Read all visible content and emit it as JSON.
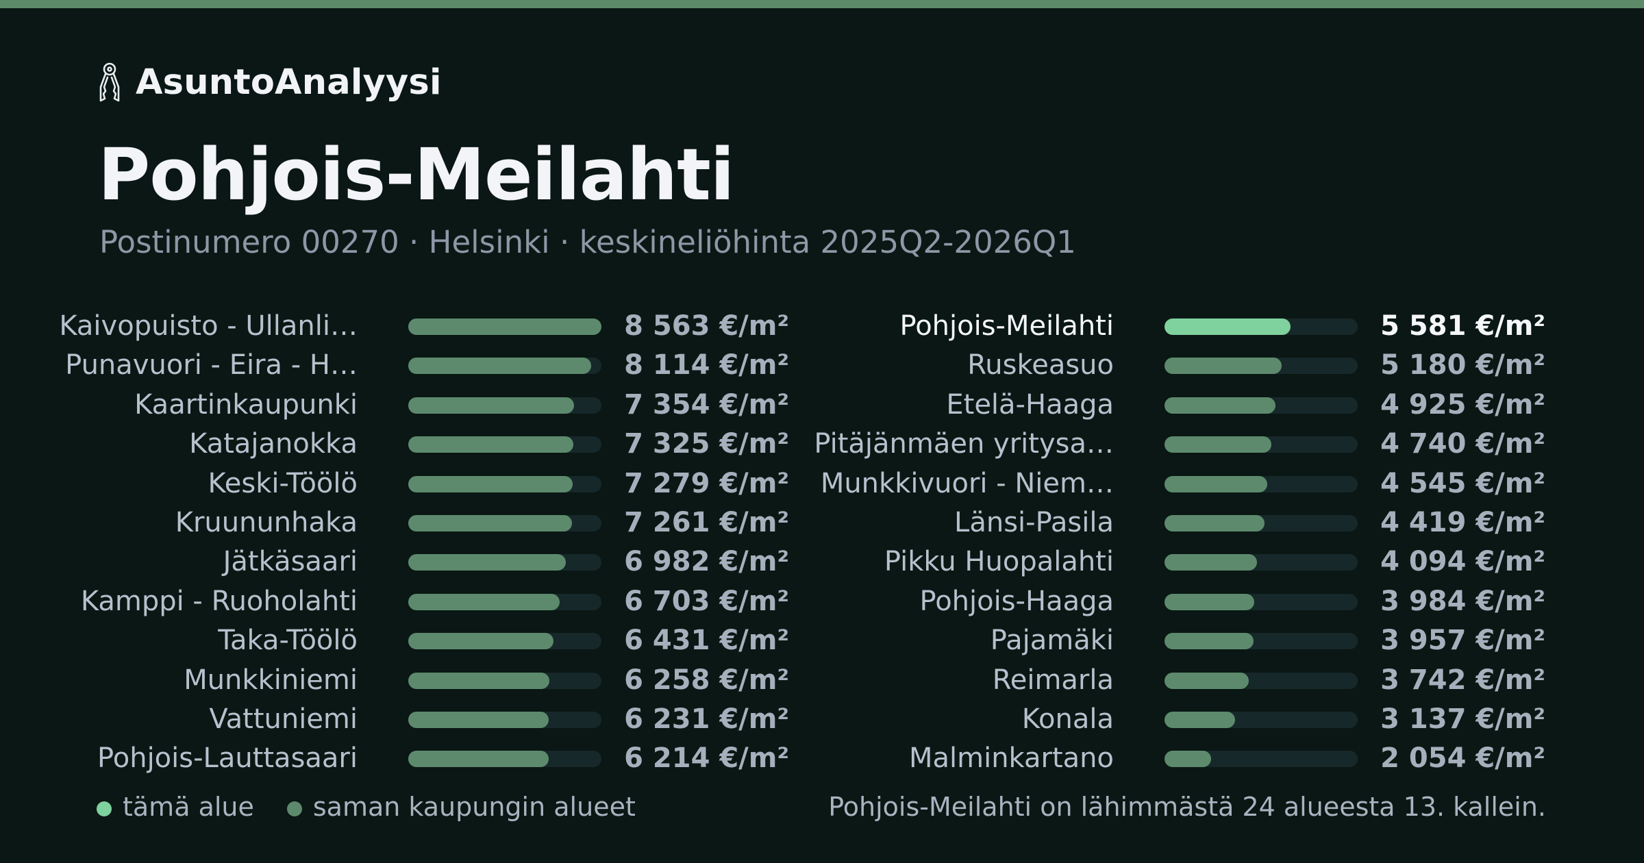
{
  "brand": {
    "name": "AsuntoAnalyysi",
    "icon": "house-keys-icon"
  },
  "title": "Pohjois-Meilahti",
  "subtitle": "Postinumero 00270 · Helsinki · keskineliöhinta 2025Q2-2026Q1",
  "colors": {
    "background": "#0a1714",
    "accent": "#5d8a68",
    "bar_fill": "#5d8a6d",
    "bar_track": "#17282a",
    "highlight": "#7fd19e"
  },
  "chart_data": {
    "type": "bar",
    "orientation": "horizontal",
    "unit": "€/m²",
    "max_value": 8563,
    "highlight": "Pohjois-Meilahti",
    "columns": [
      {
        "categories": [
          "Kaivopuisto - Ullanli…",
          "Punavuori - Eira - H…",
          "Kaartinkaupunki",
          "Katajanokka",
          "Keski-Töölö",
          "Kruununhaka",
          "Jätkäsaari",
          "Kamppi - Ruoholahti",
          "Taka-Töölö",
          "Munkkiniemi",
          "Vattuniemi",
          "Pohjois-Lauttasaari"
        ],
        "values": [
          8563,
          8114,
          7354,
          7325,
          7279,
          7261,
          6982,
          6703,
          6431,
          6258,
          6231,
          6214
        ],
        "labels": [
          "8 563 €/m²",
          "8 114 €/m²",
          "7 354 €/m²",
          "7 325 €/m²",
          "7 279 €/m²",
          "7 261 €/m²",
          "6 982 €/m²",
          "6 703 €/m²",
          "6 431 €/m²",
          "6 258 €/m²",
          "6 231 €/m²",
          "6 214 €/m²"
        ]
      },
      {
        "categories": [
          "Pohjois-Meilahti",
          "Ruskeasuo",
          "Etelä-Haaga",
          "Pitäjänmäen yritysa…",
          "Munkkivuori - Niem…",
          "Länsi-Pasila",
          "Pikku Huopalahti",
          "Pohjois-Haaga",
          "Pajamäki",
          "Reimarla",
          "Konala",
          "Malminkartano"
        ],
        "values": [
          5581,
          5180,
          4925,
          4740,
          4545,
          4419,
          4094,
          3984,
          3957,
          3742,
          3137,
          2054
        ],
        "labels": [
          "5 581 €/m²",
          "5 180 €/m²",
          "4 925 €/m²",
          "4 740 €/m²",
          "4 545 €/m²",
          "4 419 €/m²",
          "4 094 €/m²",
          "3 984 €/m²",
          "3 957 €/m²",
          "3 742 €/m²",
          "3 137 €/m²",
          "2 054 €/m²"
        ]
      }
    ]
  },
  "legend": {
    "this_area": "tämä alue",
    "same_city": "saman kaupungin alueet"
  },
  "footnote": "Pohjois-Meilahti on lähimmästä 24 alueesta 13. kallein."
}
